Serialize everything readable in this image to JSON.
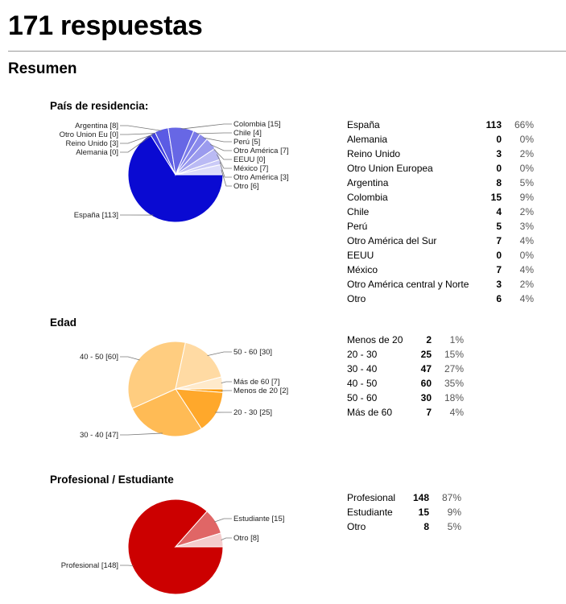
{
  "header": {
    "title": "171 respuestas",
    "summary": "Resumen"
  },
  "chart_data": [
    {
      "type": "pie",
      "title": "País de residencia:",
      "labels": [
        "España",
        "Alemania",
        "Reino Unido",
        "Otro Union Europea",
        "Argentina",
        "Colombia",
        "Chile",
        "Perú",
        "Otro América del Sur",
        "EEUU",
        "México",
        "Otro América central y Norte",
        "Otro"
      ],
      "values": [
        113,
        0,
        3,
        0,
        8,
        15,
        4,
        5,
        7,
        0,
        7,
        3,
        6
      ],
      "percents": [
        "66%",
        "0%",
        "2%",
        "0%",
        "5%",
        "9%",
        "2%",
        "3%",
        "4%",
        "0%",
        "4%",
        "2%",
        "4%"
      ],
      "slice_labels": [
        "España [113]",
        "Alemania [0]",
        "Reino Unido [3]",
        "Otro Union Eu [0]",
        "Argentina [8]",
        "Colombia [15]",
        "Chile [4]",
        "Perú [5]",
        "Otro América  [7]",
        "EEUU [0]",
        "México [7]",
        "Otro América  [3]",
        "Otro [6]"
      ],
      "colors": [
        "#0a0ad2",
        "#2e2edc",
        "#3f3fe0",
        "#5151e3",
        "#5b5be4",
        "#6767e5",
        "#7a7ae9",
        "#8a8aec",
        "#9b9bee",
        "#aaaaf1",
        "#babaf4",
        "#cacaf7",
        "#dcdcfa"
      ]
    },
    {
      "type": "pie",
      "title": "Edad",
      "labels": [
        "Menos de 20",
        "20 - 30",
        "30 - 40",
        "40 - 50",
        "50 - 60",
        "Más de 60"
      ],
      "values": [
        2,
        25,
        47,
        60,
        30,
        7
      ],
      "percents": [
        "1%",
        "15%",
        "27%",
        "35%",
        "18%",
        "4%"
      ],
      "slice_labels": [
        "Menos de 20 [2]",
        "20 - 30 [25]",
        "30 - 40 [47]",
        "40 - 50 [60]",
        "50 - 60 [30]",
        "Más de 60 [7]"
      ],
      "colors": [
        "#ff9a00",
        "#ffa82b",
        "#ffbb55",
        "#ffcd80",
        "#ffdaa3",
        "#ffeacb"
      ]
    },
    {
      "type": "pie",
      "title": "Profesional / Estudiante",
      "labels": [
        "Profesional",
        "Estudiante",
        "Otro"
      ],
      "values": [
        148,
        15,
        8
      ],
      "percents": [
        "87%",
        "9%",
        "5%"
      ],
      "slice_labels": [
        "Profesional [148]",
        "Estudiante [15]",
        "Otro [8]"
      ],
      "colors": [
        "#cc0000",
        "#e06666",
        "#f4cccc"
      ]
    }
  ]
}
